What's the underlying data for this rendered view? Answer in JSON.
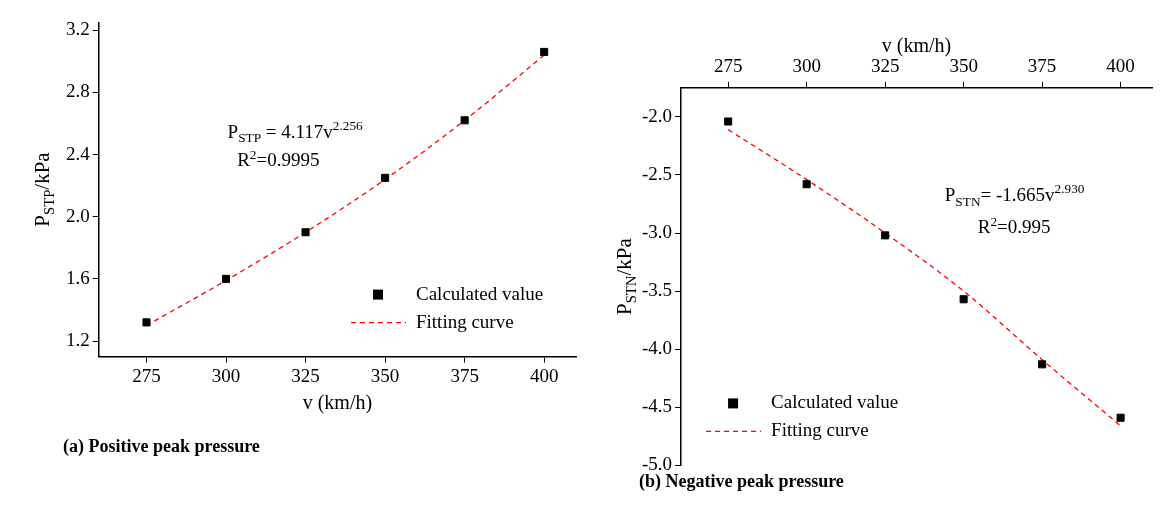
{
  "chart_data": [
    {
      "type": "scatter",
      "title": "(a) Positive peak pressure",
      "xlabel": "v (km/h)",
      "ylabel": "P$_{STP}$/kPa",
      "x": [
        275,
        300,
        325,
        350,
        375,
        400
      ],
      "series": [
        {
          "name": "Calculated value",
          "color": "#000000",
          "values": [
            1.32,
            1.6,
            1.9,
            2.25,
            2.62,
            3.06
          ],
          "marker": "square"
        },
        {
          "name": "Fitting curve",
          "type": "line",
          "color": "#ff0000",
          "values": [
            1.3,
            1.59,
            1.9,
            2.24,
            2.62,
            3.04
          ],
          "marker": "none",
          "line_style": "dashed"
        }
      ],
      "xlim": [
        260,
        410
      ],
      "xticks": [
        275,
        300,
        325,
        350,
        375,
        400
      ],
      "ylim": [
        1.1,
        3.25
      ],
      "yticks": [
        1.2,
        1.6,
        {
          "value": 2,
          "label": "2.0"
        },
        2.4,
        2.8,
        3.2
      ],
      "annotations": [
        "P$_{STP}$ = 4.117v$^{2.256}$",
        "R$^{2}$=0.9995"
      ],
      "legend": "bottom right",
      "grid": false
    },
    {
      "type": "scatter",
      "title": "(b) Negative peak pressure",
      "xlabel": "v (km/h)",
      "ylabel": "P$_{STN}$/kPa",
      "x": [
        275,
        300,
        325,
        350,
        375,
        400
      ],
      "series": [
        {
          "name": "Calculated value",
          "color": "#000000",
          "values": [
            -2.04,
            -2.58,
            -3.02,
            -3.57,
            -4.13,
            -4.59
          ],
          "marker": "square"
        },
        {
          "name": "Fitting curve",
          "type": "line",
          "color": "#ff0000",
          "values": [
            -2.11,
            -2.54,
            -3.0,
            -3.5,
            -4.09,
            -4.66
          ],
          "marker": "none",
          "line_style": "dashed"
        }
      ],
      "xlim": [
        260,
        410
      ],
      "xticks": [
        275,
        300,
        325,
        350,
        375,
        400
      ],
      "ylim": [
        -5,
        -1.75
      ],
      "yticks": [
        {
          "value": -5,
          "label": "-5.0"
        },
        -4.5,
        {
          "value": -4,
          "label": "-4.0"
        },
        -3.5,
        {
          "value": -3,
          "label": "-3.0"
        },
        -2.5,
        {
          "value": -2,
          "label": "-2.0"
        }
      ],
      "annotations": [
        "P$_{STN}$= -1.665v$^{2.930}$",
        "R$^{2}$=0.995"
      ],
      "legend": "bottom left",
      "grid": false
    }
  ]
}
